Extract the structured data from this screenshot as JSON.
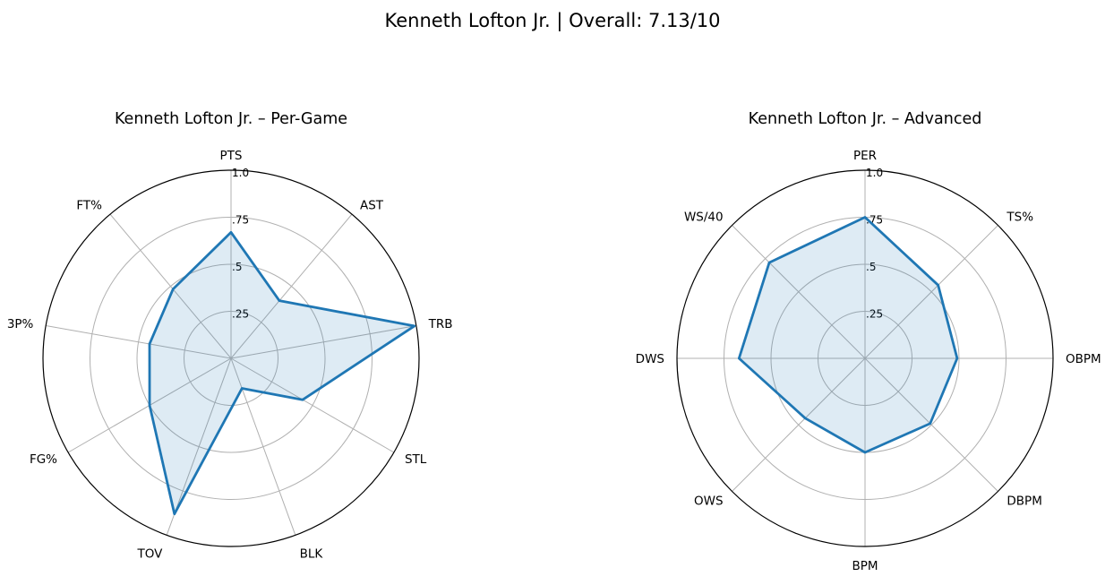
{
  "figure": {
    "title": "Kenneth Lofton Jr. | Overall: 7.13/10"
  },
  "style": {
    "series_color": "#1f77b4",
    "fill_color": "#1f77b4",
    "fill_opacity": 0.15,
    "grid_color": "#b0b0b0",
    "frame_color": "#000000"
  },
  "chart_data": [
    {
      "type": "radar",
      "title": "Kenneth Lofton Jr. – Per-Game",
      "categories": [
        "PTS",
        "AST",
        "TRB",
        "STL",
        "BLK",
        "TOV",
        "FG%",
        "3P%",
        "FT%"
      ],
      "values": [
        0.67,
        0.4,
        0.99,
        0.44,
        0.17,
        0.88,
        0.5,
        0.44,
        0.48
      ],
      "rlim": [
        0,
        1
      ],
      "rticks": [
        0.25,
        0.5,
        0.75,
        1.0
      ],
      "rtick_labels": [
        ".25",
        ".5",
        ".75",
        "1.0"
      ],
      "grid": true
    },
    {
      "type": "radar",
      "title": "Kenneth Lofton Jr. – Advanced",
      "categories": [
        "PER",
        "TS%",
        "OBPM",
        "DBPM",
        "BPM",
        "OWS",
        "DWS",
        "WS/40"
      ],
      "values": [
        0.75,
        0.55,
        0.49,
        0.49,
        0.5,
        0.45,
        0.67,
        0.72
      ],
      "rlim": [
        0,
        1
      ],
      "rticks": [
        0.25,
        0.5,
        0.75,
        1.0
      ],
      "rtick_labels": [
        ".25",
        ".5",
        ".75",
        "1.0"
      ],
      "grid": true
    }
  ]
}
